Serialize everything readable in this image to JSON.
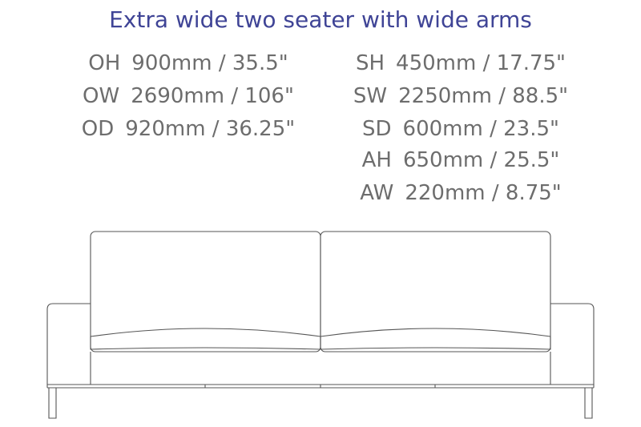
{
  "title": "Extra wide two seater with wide arms",
  "specs_left": [
    {
      "code": "OH",
      "value": "900mm / 35.5\""
    },
    {
      "code": "OW",
      "value": "2690mm / 106\""
    },
    {
      "code": "OD",
      "value": "920mm / 36.25\""
    }
  ],
  "specs_right": [
    {
      "code": "SH",
      "value": "450mm / 17.75\""
    },
    {
      "code": "SW",
      "value": "2250mm / 88.5\""
    },
    {
      "code": "SD",
      "value": "600mm / 23.5\""
    }
  ],
  "specs_right_arm": [
    {
      "code": "AH",
      "value": "650mm / 25.5\""
    },
    {
      "code": "AW",
      "value": "220mm / 8.75\""
    }
  ],
  "colors": {
    "title": "#3f4496",
    "text": "#6d6d6d",
    "line": "#555555"
  }
}
